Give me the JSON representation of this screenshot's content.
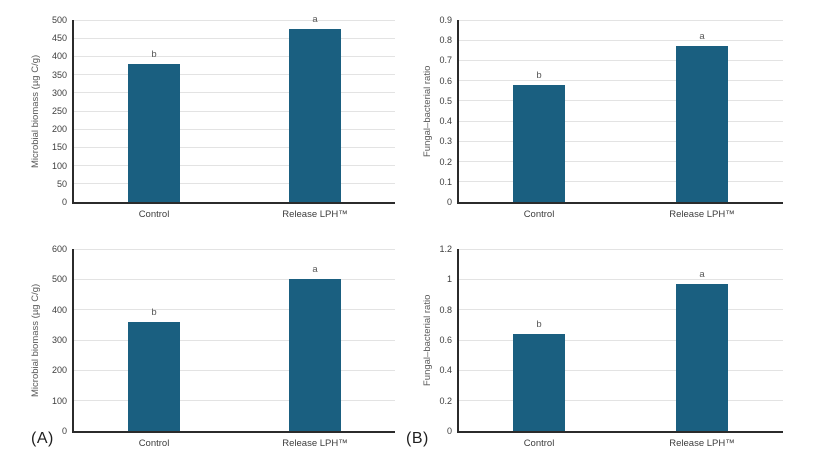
{
  "figure": {
    "background": "#ffffff",
    "panel_labels": [
      {
        "text": "(A)"
      },
      {
        "text": "(B)"
      }
    ]
  },
  "style": {
    "bar_color": "#1A5F80",
    "gridline_color": "#e3e3e3",
    "axis_line_color": "#2b2b2b",
    "tick_label_color": "#3d3d3d",
    "axis_title_color": "#595959",
    "sig_letter_color": "#595959",
    "category_label_color": "#3d3d3d"
  },
  "chart_data": [
    {
      "type": "bar",
      "position": "top-left",
      "title": "",
      "xlabel": "",
      "ylabel": "Microbial biomass (µg C/g)",
      "categories": [
        "Control",
        "Release LPH™"
      ],
      "values": [
        380,
        475
      ],
      "significance_letters": [
        "b",
        "a"
      ],
      "ylim": [
        0,
        500
      ],
      "ytick_step": 50,
      "yticks": [
        "0",
        "50",
        "100",
        "150",
        "200",
        "250",
        "300",
        "350",
        "400",
        "450",
        "500"
      ],
      "grid": true,
      "legend": false
    },
    {
      "type": "bar",
      "position": "top-right",
      "title": "",
      "xlabel": "",
      "ylabel": "Fungal–bacterial ratio",
      "categories": [
        "Control",
        "Release LPH™"
      ],
      "values": [
        0.58,
        0.77
      ],
      "significance_letters": [
        "b",
        "a"
      ],
      "ylim": [
        0,
        0.9
      ],
      "ytick_step": 0.1,
      "yticks": [
        "0",
        "0.1",
        "0.2",
        "0.3",
        "0.4",
        "0.5",
        "0.6",
        "0.7",
        "0.8",
        "0.9"
      ],
      "grid": true,
      "legend": false
    },
    {
      "type": "bar",
      "position": "bottom-left",
      "panel": "(A)",
      "title": "",
      "xlabel": "",
      "ylabel": "Microbial biomass (µg C/g)",
      "categories": [
        "Control",
        "Release LPH™"
      ],
      "values": [
        360,
        500
      ],
      "significance_letters": [
        "b",
        "a"
      ],
      "ylim": [
        0,
        600
      ],
      "ytick_step": 100,
      "yticks": [
        "0",
        "100",
        "200",
        "300",
        "400",
        "500",
        "600"
      ],
      "grid": true,
      "legend": false
    },
    {
      "type": "bar",
      "position": "bottom-right",
      "panel": "(B)",
      "title": "",
      "xlabel": "",
      "ylabel": "Fungal–bacterial ratio",
      "categories": [
        "Control",
        "Release LPH™"
      ],
      "values": [
        0.64,
        0.97
      ],
      "significance_letters": [
        "b",
        "a"
      ],
      "ylim": [
        0,
        1.2
      ],
      "ytick_step": 0.2,
      "yticks": [
        "0",
        "0.2",
        "0.4",
        "0.6",
        "0.8",
        "1",
        "1.2"
      ],
      "grid": true,
      "legend": false
    }
  ]
}
